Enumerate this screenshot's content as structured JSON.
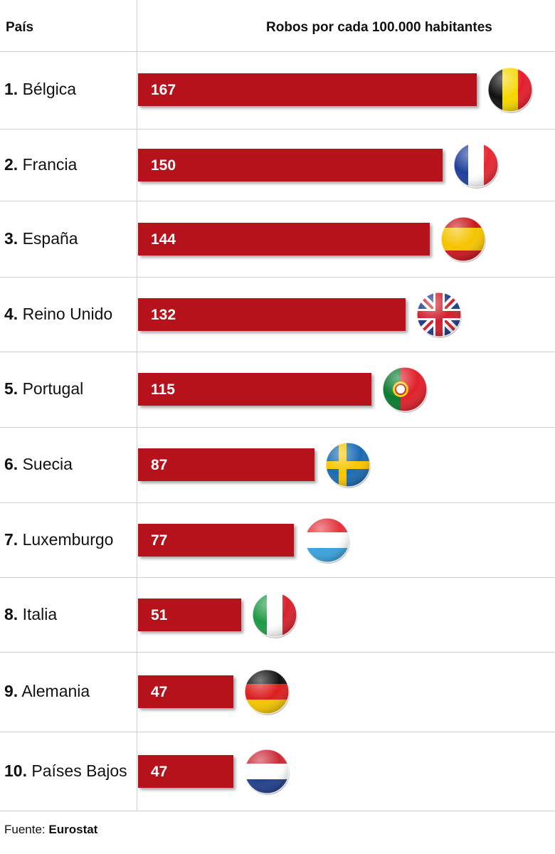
{
  "header": {
    "country_label": "País",
    "value_label": "Robos por cada 100.000 habitantes"
  },
  "chart_data": {
    "type": "bar",
    "orientation": "horizontal",
    "ylabel": "Robos por cada 100.000 habitantes",
    "categories": [
      "Bélgica",
      "Francia",
      "España",
      "Reino Unido",
      "Portugal",
      "Suecia",
      "Luxemburgo",
      "Italia",
      "Alemania",
      "Países Bajos"
    ],
    "values": [
      167,
      150,
      144,
      132,
      115,
      87,
      77,
      51,
      47,
      47
    ],
    "grid": false,
    "legend": "none"
  },
  "rows": [
    {
      "rank": "1.",
      "country": "Bélgica",
      "value": "167",
      "flag": "belgium-flag-icon"
    },
    {
      "rank": "2.",
      "country": "Francia",
      "value": "150",
      "flag": "france-flag-icon"
    },
    {
      "rank": "3.",
      "country": "España",
      "value": "144",
      "flag": "spain-flag-icon"
    },
    {
      "rank": "4.",
      "country": "Reino Unido",
      "value": "132",
      "flag": "uk-flag-icon"
    },
    {
      "rank": "5.",
      "country": "Portugal",
      "value": "115",
      "flag": "portugal-flag-icon"
    },
    {
      "rank": "6.",
      "country": "Suecia",
      "value": "87",
      "flag": "sweden-flag-icon"
    },
    {
      "rank": "7.",
      "country": "Luxemburgo",
      "value": "77",
      "flag": "luxembourg-flag-icon"
    },
    {
      "rank": "8.",
      "country": "Italia",
      "value": "51",
      "flag": "italy-flag-icon"
    },
    {
      "rank": "9.",
      "country": "Alemania",
      "value": "47",
      "flag": "germany-flag-icon"
    },
    {
      "rank": "10.",
      "country": "Países Bajos",
      "value": "47",
      "flag": "netherlands-flag-icon"
    }
  ],
  "colors": {
    "bar": "#b6121b",
    "bar_text": "#ffffff",
    "divider": "#cfcfcf"
  },
  "source": {
    "prefix": "Fuente:",
    "name": "Eurostat"
  }
}
